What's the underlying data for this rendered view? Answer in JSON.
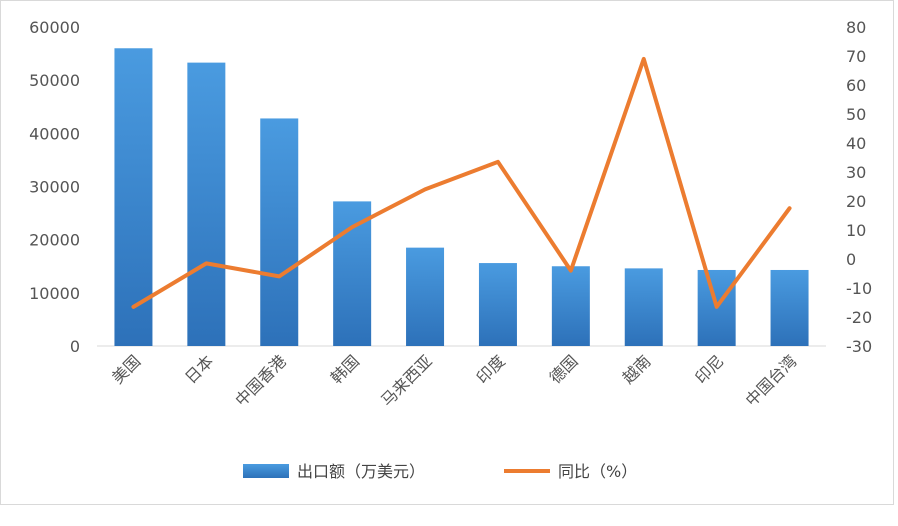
{
  "chart_data": {
    "type": "bar+line",
    "categories": [
      "美国",
      "日本",
      "中国香港",
      "韩国",
      "马来西亚",
      "印度",
      "德国",
      "越南",
      "印尼",
      "中国台湾"
    ],
    "series": [
      {
        "name": "出口额（万美元）",
        "type": "bar",
        "axis": "left",
        "values": [
          56000,
          53300,
          42800,
          27200,
          18500,
          15600,
          15000,
          14600,
          14300,
          14300
        ]
      },
      {
        "name": "同比（%）",
        "type": "line",
        "axis": "right",
        "values": [
          -16.5,
          -1.5,
          -6,
          11,
          24,
          33.5,
          -4,
          69,
          -16.5,
          17.5
        ]
      }
    ],
    "y_left": {
      "ylim": [
        0,
        60000
      ],
      "ticks": [
        "0",
        "10000",
        "20000",
        "30000",
        "40000",
        "50000",
        "60000"
      ]
    },
    "y_right": {
      "ylim": [
        -30,
        80
      ],
      "ticks": [
        "-30",
        "-20",
        "-10",
        "0",
        "10",
        "20",
        "30",
        "40",
        "50",
        "60",
        "70",
        "80"
      ]
    },
    "legend_position": "bottom",
    "grid": false,
    "colors": {
      "bar": "#3d8fd8",
      "bar_dark": "#2a6fb8",
      "line": "#ec7c30"
    }
  }
}
